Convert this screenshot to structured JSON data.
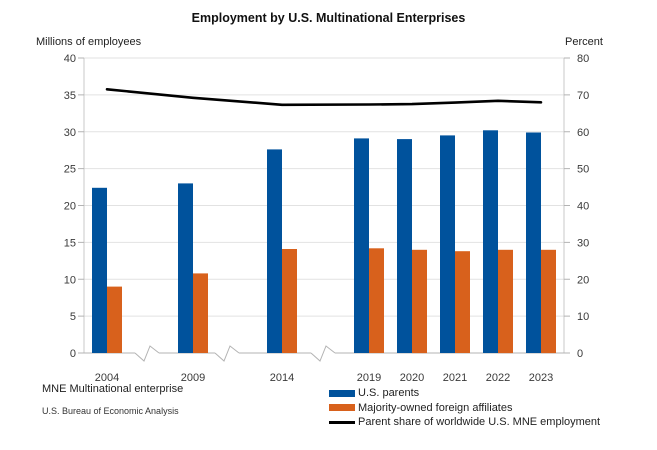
{
  "title": "Employment by U.S. Multinational Enterprises",
  "footnotes": {
    "mne": "MNE Multinational enterprise",
    "source": "U.S. Bureau of Economic Analysis"
  },
  "chart_data": {
    "type": "bar",
    "title": "Employment by U.S. Multinational Enterprises",
    "categories": [
      "2004",
      "2009",
      "2014",
      "2019",
      "2020",
      "2021",
      "2022",
      "2023"
    ],
    "left_axis": {
      "label": "Millions of employees",
      "min": 0,
      "max": 40,
      "step": 5
    },
    "right_axis": {
      "label": "Percent",
      "min": 0,
      "max": 80,
      "step": 10
    },
    "grid": true,
    "legend_position": "bottom",
    "axis_breaks_between": [
      [
        "2004",
        "2009"
      ],
      [
        "2009",
        "2014"
      ],
      [
        "2014",
        "2019"
      ]
    ],
    "series": [
      {
        "name": "U.S. parents",
        "type": "bar",
        "axis": "left",
        "color": "#00529C",
        "values": [
          22.4,
          23.0,
          27.6,
          29.1,
          29.0,
          29.5,
          30.2,
          29.9
        ]
      },
      {
        "name": "Majority-owned foreign affiliates",
        "type": "bar",
        "axis": "left",
        "color": "#D8611C",
        "values": [
          9.0,
          10.8,
          14.1,
          14.2,
          14.0,
          13.8,
          14.0,
          14.0
        ]
      },
      {
        "name": "Parent share of worldwide U.S. MNE employment",
        "type": "line",
        "axis": "right",
        "color": "#000000",
        "values": [
          71.5,
          69.2,
          67.3,
          67.4,
          67.5,
          67.9,
          68.4,
          68.0
        ]
      }
    ],
    "colors": {
      "gridline": "#e2e2e2",
      "axis_line": "#c8c8c8",
      "tick": "#b3b3b3",
      "tick_label": "#3a3a3a"
    }
  }
}
